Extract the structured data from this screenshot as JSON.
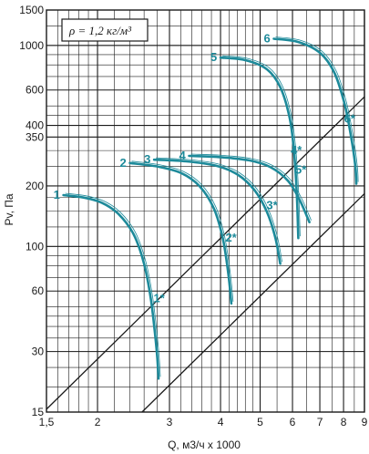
{
  "chart_data": {
    "type": "line",
    "annotation": "ρ = 1,2 кг/м³",
    "xlabel": "Q, м3/ч x 1000",
    "ylabel": "Pv, Па",
    "x_scale": "log",
    "y_scale": "log",
    "xlim": [
      1.5,
      9
    ],
    "ylim": [
      15,
      1500
    ],
    "grid": true,
    "x_ticks": [
      {
        "value": 1.5,
        "label": "1,5"
      },
      {
        "value": 2,
        "label": "2"
      },
      {
        "value": 3,
        "label": "3"
      },
      {
        "value": 4,
        "label": "4"
      },
      {
        "value": 5,
        "label": "5"
      },
      {
        "value": 6,
        "label": "6"
      },
      {
        "value": 7,
        "label": "7"
      },
      {
        "value": 8,
        "label": "8"
      },
      {
        "value": 9,
        "label": "9"
      }
    ],
    "y_ticks": [
      {
        "value": 15,
        "label": "15"
      },
      {
        "value": 30,
        "label": "30"
      },
      {
        "value": 60,
        "label": "60"
      },
      {
        "value": 100,
        "label": "100"
      },
      {
        "value": 200,
        "label": "200"
      },
      {
        "value": 350,
        "label": "350"
      },
      {
        "value": 400,
        "label": "400"
      },
      {
        "value": 600,
        "label": "600"
      },
      {
        "value": 1000,
        "label": "1000"
      },
      {
        "value": 1500,
        "label": "1500"
      }
    ],
    "series": [
      {
        "label": "1",
        "x": [
          1.65,
          1.85,
          2.05,
          2.25,
          2.45,
          2.6,
          2.7,
          2.76,
          2.8,
          2.82
        ],
        "y": [
          180,
          175,
          165,
          145,
          115,
          82,
          55,
          38,
          28,
          22
        ]
      },
      {
        "label": "2",
        "x": [
          2.4,
          2.8,
          3.2,
          3.55,
          3.85,
          4.05,
          4.18,
          4.25
        ],
        "y": [
          260,
          250,
          232,
          200,
          155,
          110,
          73,
          52
        ]
      },
      {
        "label": "3",
        "x": [
          2.75,
          3.3,
          3.9,
          4.4,
          4.85,
          5.2,
          5.45,
          5.6
        ],
        "y": [
          270,
          265,
          252,
          228,
          190,
          148,
          110,
          82
        ]
      },
      {
        "label": "4",
        "x": [
          3.35,
          4.0,
          4.7,
          5.3,
          5.85,
          6.25,
          6.6
        ],
        "y": [
          282,
          278,
          268,
          248,
          212,
          170,
          132
        ]
      },
      {
        "label": "5",
        "x": [
          4.0,
          4.6,
          5.2,
          5.6,
          5.9,
          6.05,
          6.15,
          6.2
        ],
        "y": [
          870,
          845,
          760,
          620,
          440,
          300,
          180,
          110
        ]
      },
      {
        "label": "6",
        "x": [
          5.4,
          6.2,
          7.0,
          7.6,
          8.05,
          8.35,
          8.55,
          8.6
        ],
        "y": [
          1080,
          1040,
          920,
          730,
          510,
          350,
          250,
          205
        ]
      }
    ],
    "system_lines": [
      {
        "x": [
          1.5,
          9.0
        ],
        "y": [
          15.5,
          555
        ]
      },
      {
        "x": [
          2.57,
          9.0
        ],
        "y": [
          15,
          183
        ]
      }
    ],
    "point_labels": [
      {
        "label": "1*",
        "x": 2.7,
        "y": 55
      },
      {
        "label": "2*",
        "x": 4.05,
        "y": 110
      },
      {
        "label": "3*",
        "x": 5.1,
        "y": 160
      },
      {
        "label": "4*",
        "x": 5.85,
        "y": 300
      },
      {
        "label": "5*",
        "x": 6.0,
        "y": 240
      },
      {
        "label": "6*",
        "x": 7.9,
        "y": 430
      }
    ]
  }
}
